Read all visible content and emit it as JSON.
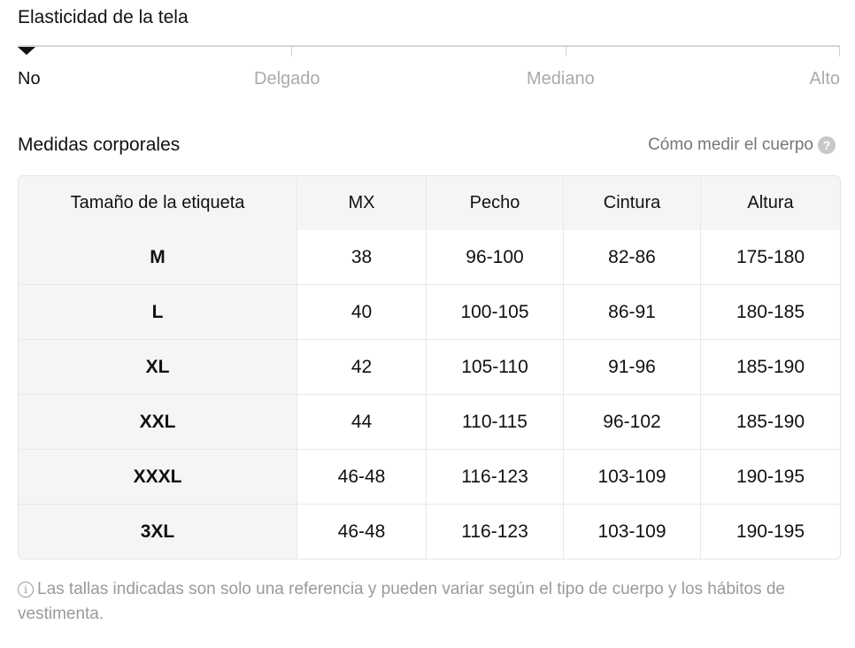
{
  "elasticity": {
    "title": "Elasticidad de la tela",
    "levels": [
      "No",
      "Delgado",
      "Mediano",
      "Alto"
    ],
    "selected": "No"
  },
  "measures": {
    "title": "Medidas corporales",
    "howto_label": "Cómo medir el cuerpo",
    "howto_icon": "question-circle-icon"
  },
  "table": {
    "headers": [
      "Tamaño de la etiqueta",
      "MX",
      "Pecho",
      "Cintura",
      "Altura"
    ],
    "rows": [
      [
        "M",
        "38",
        "96-100",
        "82-86",
        "175-180"
      ],
      [
        "L",
        "40",
        "100-105",
        "86-91",
        "180-185"
      ],
      [
        "XL",
        "42",
        "105-110",
        "91-96",
        "185-190"
      ],
      [
        "XXL",
        "44",
        "110-115",
        "96-102",
        "185-190"
      ],
      [
        "XXXL",
        "46-48",
        "116-123",
        "103-109",
        "190-195"
      ],
      [
        "3XL",
        "46-48",
        "116-123",
        "103-109",
        "190-195"
      ]
    ]
  },
  "note": {
    "icon": "info-icon",
    "text": "Las tallas indicadas son solo una referencia y pueden variar según el tipo de cuerpo y los hábitos de vestimenta."
  }
}
